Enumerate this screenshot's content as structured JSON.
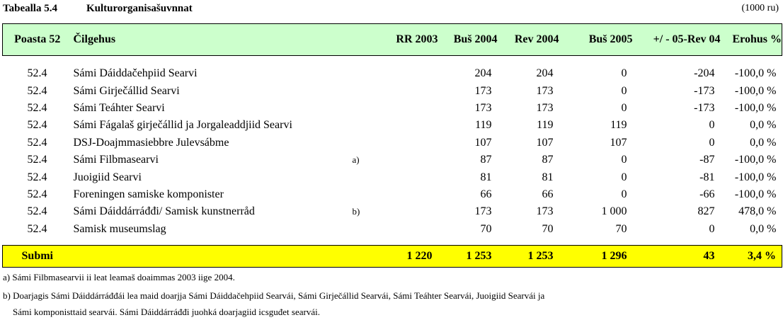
{
  "caption": {
    "number": "Tabealla 5.4",
    "title": "Kulturorganisašuvnnat",
    "unit": "(1000 ru)"
  },
  "columns": [
    "Poasta 52",
    "Čilgehus",
    "",
    "RR 2003",
    "Buš 2004",
    "Rev 2004",
    "Buš 2005",
    "+/ - 05-Rev 04",
    "Erohus %"
  ],
  "rows": [
    {
      "post": "52.4",
      "name": "Sámi Dáiddačehpiid Searvi",
      "note": "",
      "rr2003": "",
      "bus2004": "204",
      "rev2004": "204",
      "bus2005": "0",
      "diff": "-204",
      "pct": "-100,0 %"
    },
    {
      "post": "52.4",
      "name": "Sámi Girječállid Searvi",
      "note": "",
      "rr2003": "",
      "bus2004": "173",
      "rev2004": "173",
      "bus2005": "0",
      "diff": "-173",
      "pct": "-100,0 %"
    },
    {
      "post": "52.4",
      "name": "Sámi Teáhter Searvi",
      "note": "",
      "rr2003": "",
      "bus2004": "173",
      "rev2004": "173",
      "bus2005": "0",
      "diff": "-173",
      "pct": "-100,0 %"
    },
    {
      "post": "52.4",
      "name": "Sámi Fágalaš girječállid ja Jorgaleaddjiid Searvi",
      "note": "",
      "rr2003": "",
      "bus2004": "119",
      "rev2004": "119",
      "bus2005": "119",
      "diff": "0",
      "pct": "0,0 %"
    },
    {
      "post": "52.4",
      "name": "DSJ-Doajmmasiebbre Julevsábme",
      "note": "",
      "rr2003": "",
      "bus2004": "107",
      "rev2004": "107",
      "bus2005": "107",
      "diff": "0",
      "pct": "0,0 %"
    },
    {
      "post": "52.4",
      "name": "Sámi Filbmasearvi",
      "note": "a)",
      "rr2003": "",
      "bus2004": "87",
      "rev2004": "87",
      "bus2005": "0",
      "diff": "-87",
      "pct": "-100,0 %"
    },
    {
      "post": "52.4",
      "name": "Juoigiid Searvi",
      "note": "",
      "rr2003": "",
      "bus2004": "81",
      "rev2004": "81",
      "bus2005": "0",
      "diff": "-81",
      "pct": "-100,0 %"
    },
    {
      "post": "52.4",
      "name": "Foreningen samiske komponister",
      "note": "",
      "rr2003": "",
      "bus2004": "66",
      "rev2004": "66",
      "bus2005": "0",
      "diff": "-66",
      "pct": "-100,0 %"
    },
    {
      "post": "52.4",
      "name": "Sámi Dáiddárráđđi/ Samisk kunstnerråd",
      "note": "b)",
      "rr2003": "",
      "bus2004": "173",
      "rev2004": "173",
      "bus2005": "1 000",
      "diff": "827",
      "pct": "478,0 %"
    },
    {
      "post": "52.4",
      "name": "Samisk museumslag",
      "note": "",
      "rr2003": "",
      "bus2004": "70",
      "rev2004": "70",
      "bus2005": "70",
      "diff": "0",
      "pct": "0,0 %"
    }
  ],
  "total": {
    "label": "Submi",
    "rr2003": "1 220",
    "bus2004": "1 253",
    "rev2004": "1 253",
    "bus2005": "1 296",
    "diff": "43",
    "pct": "3,4 %"
  },
  "footnotes": [
    "a) Sámi Filbmasearvii ii leat leamaš doaimmas 2003 iige 2004.",
    "b) Doarjagis Sámi Dáiddárráđđái lea maid doarjja Sámi Dáiddačehpiid Searvái, Sámi Girječállid Searvái, Sámi Teáhter Searvái, Juoigiid Searvái ja",
    "Sámi komponisttaid searvái. Sámi Dáiddárráđđi juohká doarjagiid icsguđet searvái."
  ]
}
